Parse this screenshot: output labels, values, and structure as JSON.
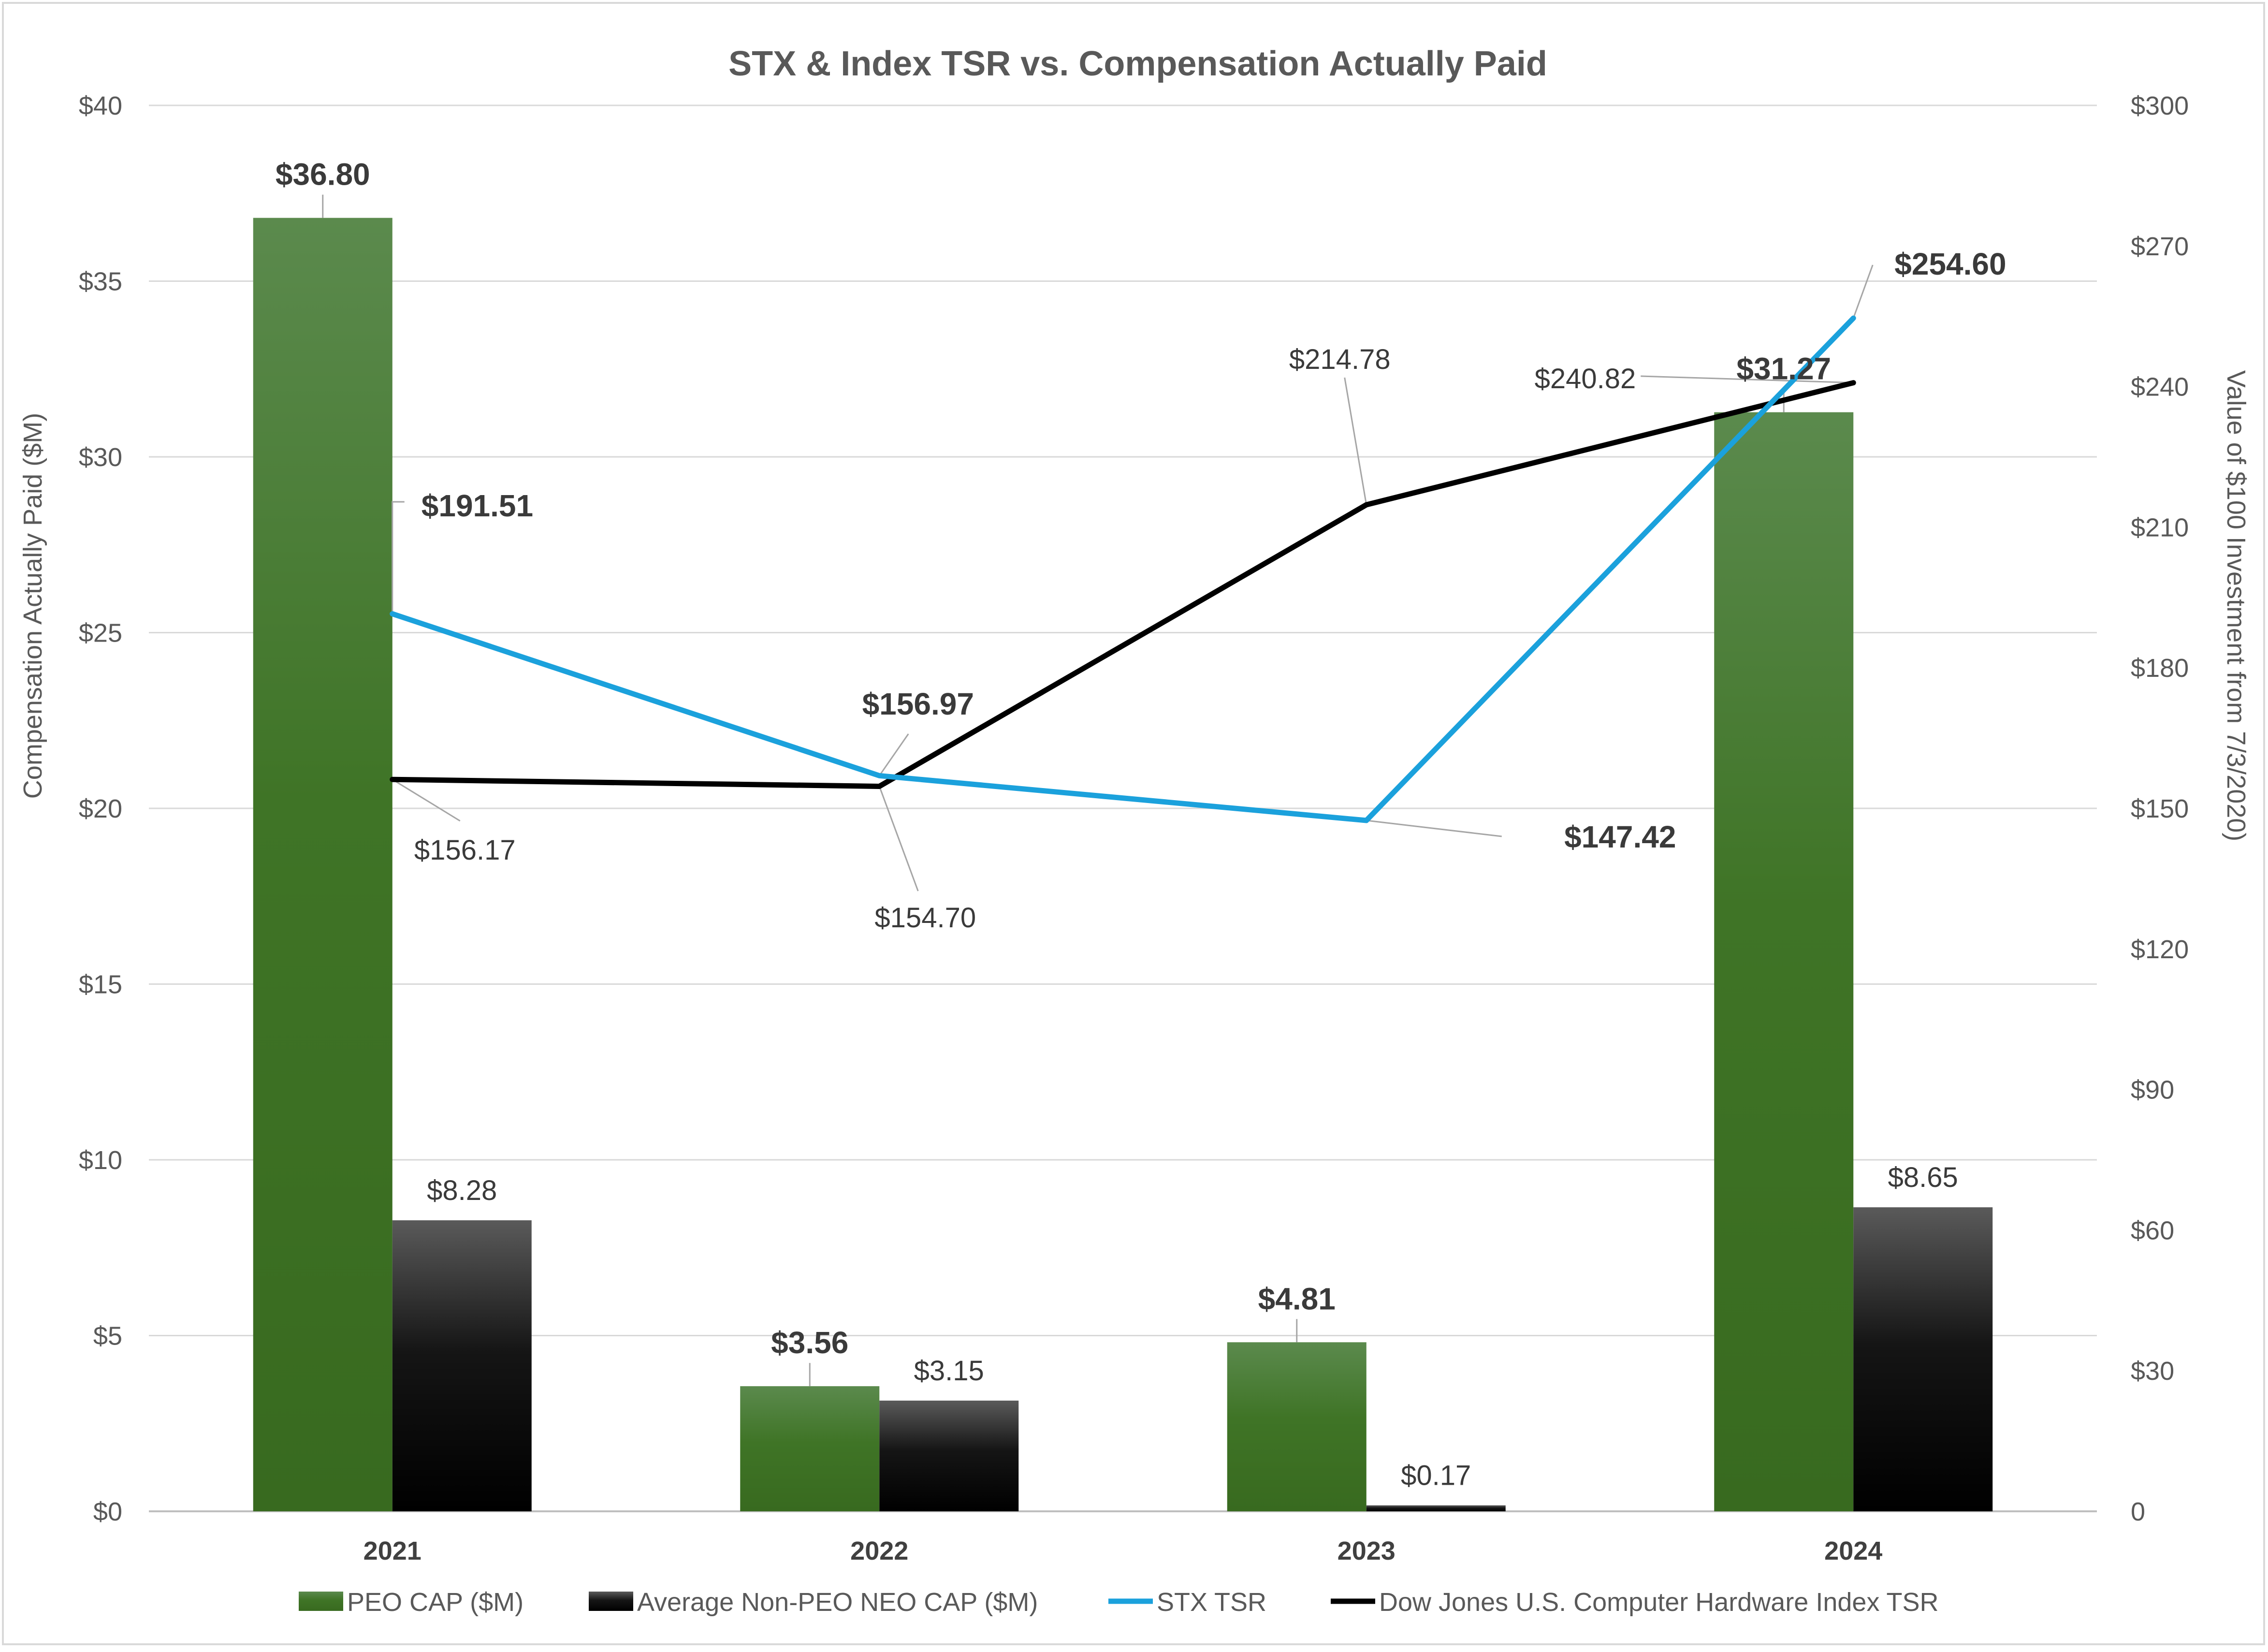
{
  "chart_data": {
    "type": "bar",
    "title": "STX & Index TSR vs. Compensation Actually Paid",
    "categories": [
      "2021",
      "2022",
      "2023",
      "2024"
    ],
    "ylabel": "Compensation Actually Paid ($M)",
    "y2label": "Value of $100 Investment from 7/3/2020)",
    "ylim": [
      0,
      40
    ],
    "y2lim": [
      0,
      300
    ],
    "yticks": [
      "$0",
      "$5",
      "$10",
      "$15",
      "$20",
      "$25",
      "$30",
      "$35",
      "$40"
    ],
    "y2ticks": [
      "0",
      "$30",
      "$60",
      "$90",
      "$120",
      "$150",
      "$180",
      "$210",
      "$240",
      "$270",
      "$300"
    ],
    "grid": true,
    "legend_position": "bottom",
    "series": [
      {
        "name": "PEO CAP ($M)",
        "type": "bar",
        "axis": "left",
        "color": "#3f7a28",
        "values": [
          36.8,
          3.56,
          4.81,
          31.27
        ],
        "labels": [
          "$36.80",
          "$3.56",
          "$4.81",
          "$31.27"
        ]
      },
      {
        "name": "Average Non-PEO NEO CAP ($M)",
        "type": "bar",
        "axis": "left",
        "color": "#000000",
        "values": [
          8.28,
          3.15,
          0.17,
          8.65
        ],
        "labels": [
          "$8.28",
          "$3.15",
          "$0.17",
          "$8.65"
        ]
      },
      {
        "name": "STX TSR",
        "type": "line",
        "axis": "right",
        "color": "#1ba1dc",
        "values": [
          191.51,
          156.97,
          147.42,
          254.6
        ],
        "labels": [
          "$191.51",
          "$156.97",
          "$147.42",
          "$254.60"
        ]
      },
      {
        "name": "Dow Jones U.S. Computer Hardware Index TSR",
        "type": "line",
        "axis": "right",
        "color": "#000000",
        "values": [
          156.17,
          154.7,
          214.78,
          240.82
        ],
        "labels": [
          "$156.17",
          "$154.70",
          "$214.78",
          "$240.82"
        ]
      }
    ]
  }
}
